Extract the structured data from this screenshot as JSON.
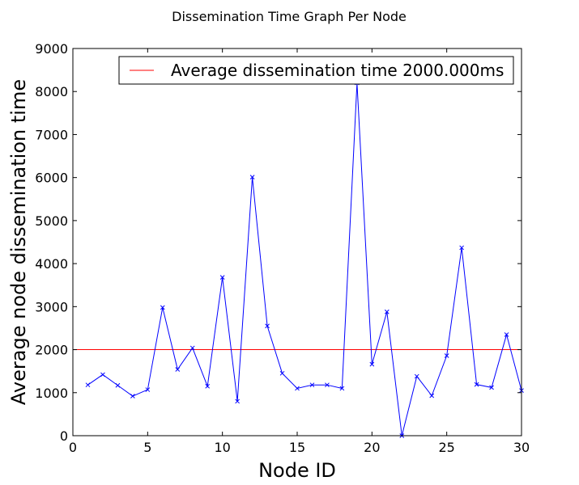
{
  "chart_data": {
    "type": "line",
    "title": "Dissemination Time Graph Per Node",
    "xlabel": "Node ID",
    "ylabel": "Average node dissemination time",
    "xlim": [
      0,
      30
    ],
    "ylim": [
      0,
      9000
    ],
    "xticks": [
      0,
      5,
      10,
      15,
      20,
      25,
      30
    ],
    "yticks": [
      0,
      1000,
      2000,
      3000,
      4000,
      5000,
      6000,
      7000,
      8000,
      9000
    ],
    "grid": false,
    "legend_position": "top-right",
    "series": [
      {
        "color": "#0000ff",
        "marker": "x",
        "x": [
          1,
          2,
          3,
          4,
          5,
          6,
          7,
          8,
          9,
          10,
          11,
          12,
          13,
          14,
          15,
          16,
          17,
          18,
          19,
          20,
          21,
          22,
          23,
          24,
          25,
          26,
          27,
          28,
          29,
          30
        ],
        "y": [
          1180,
          1420,
          1170,
          920,
          1070,
          2980,
          1540,
          2040,
          1150,
          3680,
          800,
          6010,
          2550,
          1450,
          1100,
          1180,
          1180,
          1100,
          8200,
          1660,
          2880,
          0,
          1380,
          930,
          1860,
          4370,
          1190,
          1120,
          2350,
          1050
        ]
      }
    ],
    "reference_lines": [
      {
        "name": "Average dissemination time 2000.000ms",
        "y": 2000,
        "color": "#ff0000"
      }
    ]
  }
}
